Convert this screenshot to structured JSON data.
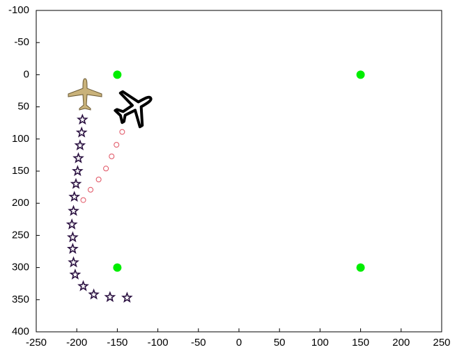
{
  "chart_data": {
    "type": "scatter",
    "xlim": [
      -250,
      250
    ],
    "xticks": [
      -250,
      -200,
      -150,
      -100,
      -50,
      0,
      50,
      100,
      150,
      200,
      250
    ],
    "ylim": [
      -100,
      400
    ],
    "yticks": [
      -100,
      -50,
      0,
      50,
      100,
      150,
      200,
      250,
      300,
      350,
      400
    ],
    "y_inverted": true,
    "grid": false,
    "series": [
      {
        "color": "#00ee00",
        "marker": "dot",
        "x": [
          -150,
          150,
          -150,
          150
        ],
        "y": [
          0,
          0,
          300,
          300
        ]
      },
      {
        "color": "#e05060",
        "marker": "circle",
        "x": [
          -144,
          -151,
          -157,
          -164,
          -173,
          -183,
          -192
        ],
        "y": [
          89,
          109,
          127,
          146,
          163,
          179,
          195
        ]
      },
      {
        "color": "#2a1040",
        "marker": "star",
        "x": [
          -193,
          -194,
          -196,
          -198,
          -199,
          -201,
          -203,
          -204,
          -206,
          -205,
          -205,
          -204,
          -202,
          -192,
          -179,
          -159,
          -138
        ],
        "y": [
          70,
          90,
          110,
          130,
          150,
          170,
          190,
          212,
          233,
          253,
          271,
          292,
          311,
          329,
          342,
          346,
          347
        ]
      }
    ]
  }
}
